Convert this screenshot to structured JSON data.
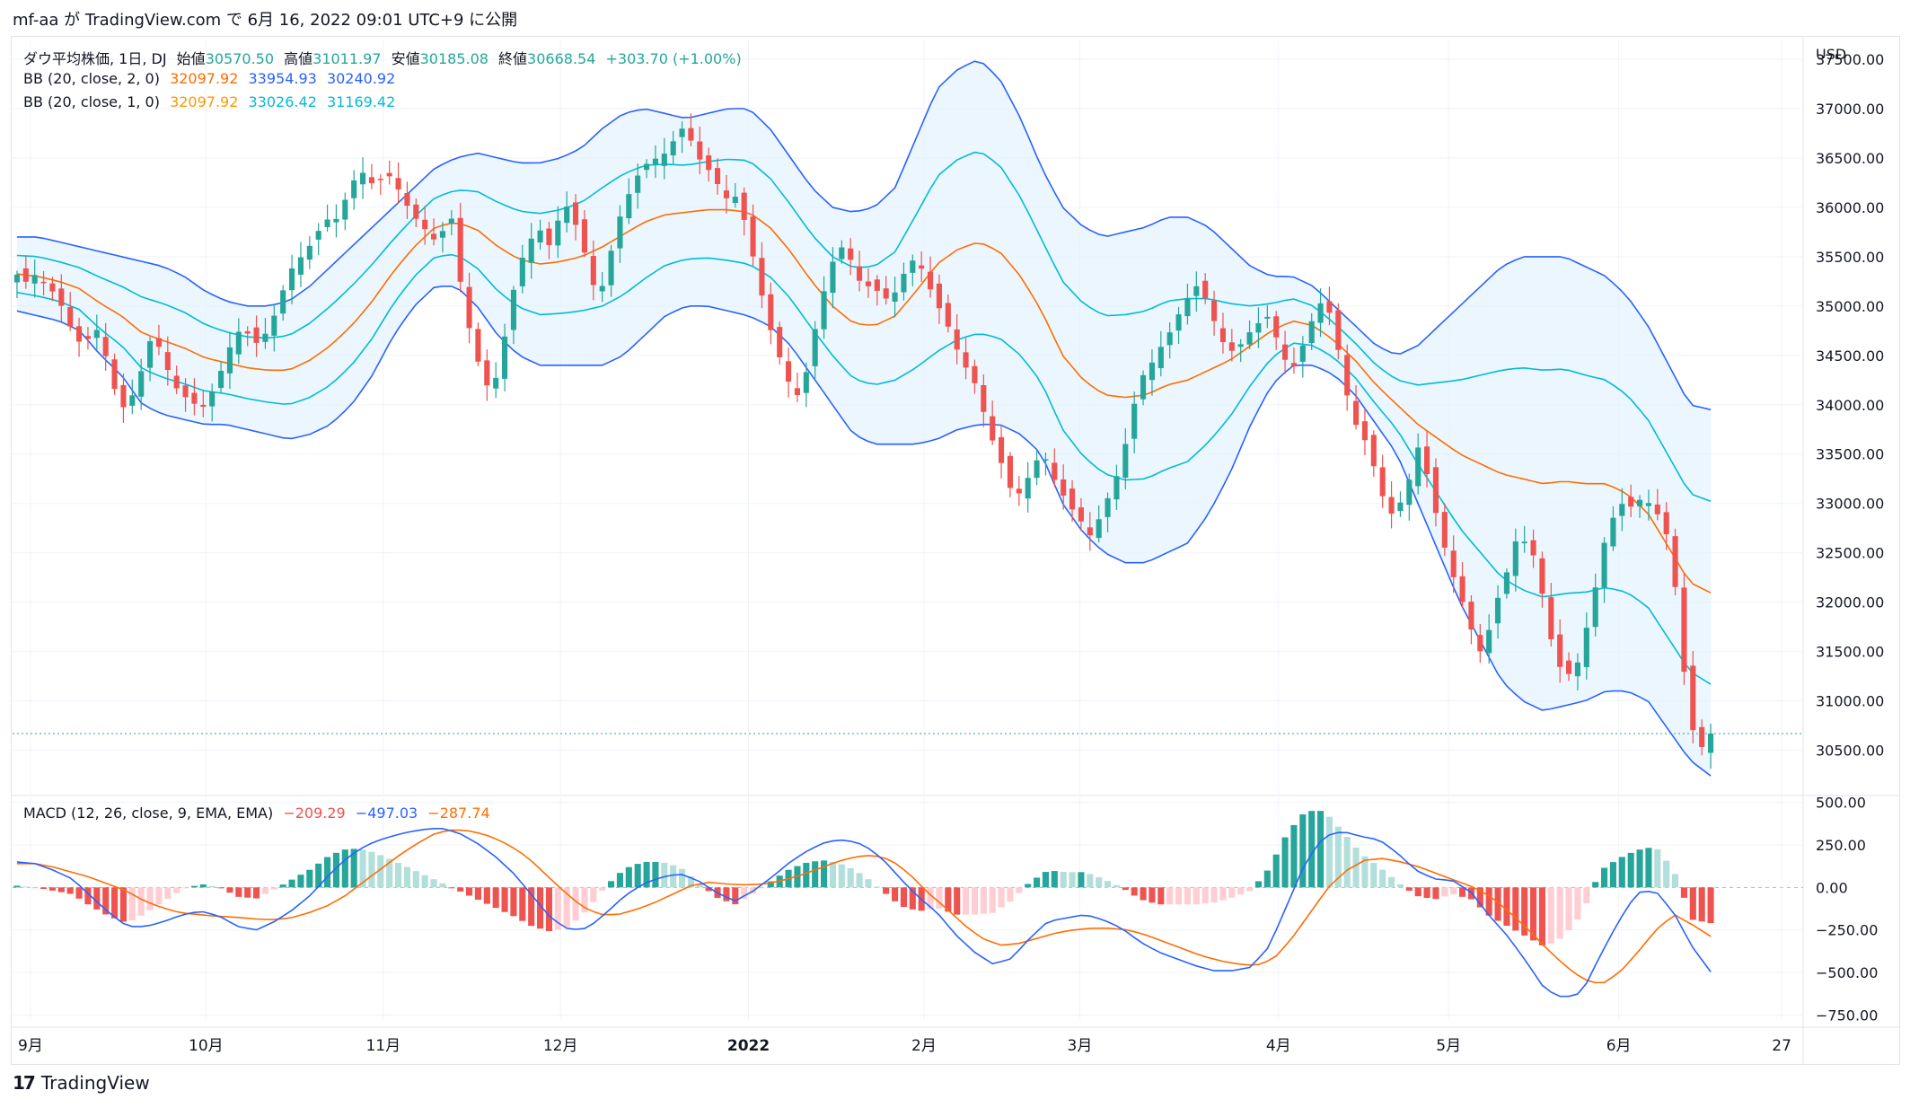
{
  "header": {
    "text": "mf-aa が TradingView.com で 6月 16, 2022 09:01 UTC+9 に公開"
  },
  "legend": {
    "main": {
      "symbol": "ダウ平均株価, 1日, DJ",
      "open_label": "始値",
      "open": "30570.50",
      "high_label": "高値",
      "high": "31011.97",
      "low_label": "安値",
      "low": "30185.08",
      "close_label": "終値",
      "close": "30668.54",
      "change": "+303.70 (+1.00%)"
    },
    "bb2": {
      "label": "BB (20, close, 2, 0)",
      "basis": "32097.92",
      "upper": "33954.93",
      "lower": "30240.92"
    },
    "bb1": {
      "label": "BB (20, close, 1, 0)",
      "basis": "32097.92",
      "upper": "33026.42",
      "lower": "31169.42"
    },
    "macd": {
      "label": "MACD (12, 26, close, 9, EMA, EMA)",
      "hist": "−209.29",
      "macd": "−497.03",
      "signal": "−287.74"
    }
  },
  "footer": {
    "logo": "17",
    "brand": "TradingView"
  },
  "colors": {
    "up": "#26a69a",
    "down": "#ef5350",
    "up_light": "#b2dfdb",
    "down_light": "#ffcdd2",
    "bb2_band": "#2962ff",
    "bb1_band": "#00bcd4",
    "basis": "#ff6d00",
    "fill": "#e3f2fd",
    "macd_line": "#2962ff",
    "signal_line": "#ff6d00",
    "grid": "#f0f3fa",
    "text": "#131722"
  },
  "chart_data": [
    {
      "type": "candlestick",
      "title": "ダウ平均株価, 1日, DJ",
      "currency": "USD",
      "y_ticks": [
        "37500.00",
        "37000.00",
        "36500.00",
        "36000.00",
        "35500.00",
        "35000.00",
        "34500.00",
        "34000.00",
        "33500.00",
        "33000.00",
        "32500.00",
        "32000.00",
        "31500.00",
        "31000.00",
        "30500.00"
      ],
      "ylim": [
        30050,
        37700
      ],
      "x_ticks": [
        "9月",
        "10月",
        "11月",
        "12月",
        "2022",
        "2月",
        "3月",
        "4月",
        "5月",
        "6月",
        "27"
      ],
      "last_price": 30668.54,
      "close_path": [
        35300,
        35200,
        35350,
        35250,
        35100,
        34900,
        34700,
        34550,
        34800,
        34600,
        34200,
        33950,
        34100,
        34400,
        34700,
        34500,
        34300,
        34100,
        34000,
        33950,
        34100,
        34300,
        34600,
        34800,
        34700,
        34550,
        34800,
        35000,
        35300,
        35500,
        35600,
        35700,
        35850,
        35900,
        36100,
        36300,
        36400,
        36200,
        36300,
        36250,
        36100,
        35900,
        35800,
        35700,
        35750,
        35850,
        35100,
        34700,
        34300,
        34100,
        34500,
        35000,
        35400,
        35700,
        35800,
        35600,
        35900,
        36050,
        35700,
        35400,
        35100,
        35400,
        35800,
        36100,
        36300,
        36400,
        36500,
        36600,
        36700,
        36800,
        36600,
        36400,
        36300,
        36100,
        36200,
        35900,
        35500,
        35100,
        34700,
        34400,
        34200,
        34100,
        34500,
        35000,
        35400,
        35600,
        35500,
        35300,
        35200,
        35100,
        35050,
        35200,
        35400,
        35500,
        35300,
        35000,
        34800,
        34600,
        34400,
        34200,
        33900,
        33600,
        33300,
        33000,
        33200,
        33400,
        33500,
        33300,
        33100,
        32900,
        32800,
        32700,
        32900,
        33100,
        33400,
        33800,
        34200,
        34400,
        34600,
        34700,
        34900,
        35100,
        35200,
        35000,
        34800,
        34600,
        34500,
        34700,
        34800,
        34900,
        34700,
        34500,
        34400,
        34600,
        34900,
        35100,
        34800,
        34300,
        33900,
        33700,
        33400,
        33100,
        32900,
        33000,
        33300,
        33700,
        33100,
        32700,
        32400,
        32100,
        31800,
        31500,
        31700,
        32000,
        32300,
        32700,
        32600,
        32400,
        31900,
        31400,
        31200,
        31300,
        31700,
        32100,
        32600,
        32900,
        33000,
        32900,
        33100,
        33000,
        32800,
        32500,
        31500,
        30700,
        30500,
        30668
      ],
      "bb2_upper_path": [
        35700,
        35700,
        35650,
        35600,
        35550,
        35500,
        35450,
        35400,
        35300,
        35150,
        35050,
        35000,
        35000,
        35050,
        35200,
        35400,
        35600,
        35800,
        36000,
        36200,
        36400,
        36500,
        36550,
        36500,
        36450,
        36450,
        36500,
        36600,
        36800,
        36950,
        37000,
        36950,
        36900,
        36950,
        37000,
        37000,
        36800,
        36500,
        36200,
        36000,
        35950,
        36000,
        36200,
        36700,
        37200,
        37400,
        37500,
        37300,
        36900,
        36400,
        36000,
        35800,
        35700,
        35750,
        35800,
        35900,
        35900,
        35800,
        35600,
        35400,
        35300,
        35300,
        35200,
        35000,
        34800,
        34600,
        34500,
        34600,
        34800,
        35000,
        35200,
        35400,
        35500,
        35500,
        35500,
        35400,
        35300,
        35100,
        34800,
        34400,
        34000,
        33950
      ],
      "bb2_lower_path": [
        34950,
        34900,
        34850,
        34750,
        34500,
        34300,
        34000,
        33900,
        33850,
        33800,
        33800,
        33750,
        33700,
        33650,
        33700,
        33800,
        34000,
        34300,
        34700,
        35000,
        35200,
        35200,
        35000,
        34700,
        34500,
        34400,
        34400,
        34400,
        34400,
        34500,
        34700,
        34900,
        35000,
        35000,
        34950,
        34900,
        34800,
        34600,
        34300,
        34000,
        33700,
        33600,
        33600,
        33600,
        33650,
        33750,
        33800,
        33800,
        33700,
        33500,
        33000,
        32700,
        32500,
        32400,
        32400,
        32500,
        32600,
        32900,
        33300,
        33800,
        34200,
        34400,
        34400,
        34300,
        34100,
        33800,
        33500,
        33000,
        32500,
        32000,
        31600,
        31200,
        31000,
        30900,
        30950,
        31000,
        31100,
        31100,
        31000,
        30700,
        30400,
        30240
      ]
    },
    {
      "type": "macd",
      "title": "MACD (12, 26, close, 9, EMA, EMA)",
      "y_ticks": [
        "500.00",
        "250.00",
        "0.00",
        "−250.00",
        "−500.00",
        "−750.00"
      ],
      "ylim": [
        -780,
        530
      ],
      "macd_path": [
        150,
        140,
        100,
        50,
        -50,
        -150,
        -230,
        -230,
        -200,
        -160,
        -140,
        -170,
        -230,
        -250,
        -200,
        -130,
        -40,
        80,
        180,
        250,
        290,
        320,
        340,
        350,
        320,
        260,
        180,
        80,
        -50,
        -180,
        -250,
        -240,
        -150,
        -50,
        20,
        60,
        80,
        40,
        -30,
        -80,
        -20,
        60,
        150,
        220,
        270,
        280,
        250,
        170,
        50,
        -60,
        -150,
        -280,
        -380,
        -450,
        -420,
        -300,
        -200,
        -180,
        -160,
        -190,
        -240,
        -320,
        -380,
        -420,
        -460,
        -490,
        -490,
        -470,
        -350,
        -100,
        150,
        300,
        330,
        300,
        280,
        200,
        100,
        50,
        40,
        -30,
        -170,
        -290,
        -440,
        -600,
        -650,
        -620,
        -400,
        -200,
        -30,
        -20,
        -150,
        -350,
        -497
      ],
      "signal_path": [
        140,
        140,
        120,
        90,
        60,
        20,
        -20,
        -80,
        -120,
        -150,
        -160,
        -170,
        -175,
        -185,
        -190,
        -180,
        -150,
        -110,
        -50,
        30,
        110,
        190,
        260,
        320,
        340,
        330,
        300,
        250,
        180,
        80,
        -20,
        -110,
        -160,
        -160,
        -130,
        -90,
        -40,
        10,
        30,
        20,
        15,
        20,
        40,
        70,
        110,
        150,
        180,
        190,
        160,
        80,
        -30,
        -120,
        -220,
        -300,
        -340,
        -330,
        -300,
        -270,
        -250,
        -240,
        -240,
        -250,
        -280,
        -320,
        -360,
        -400,
        -430,
        -450,
        -460,
        -420,
        -300,
        -150,
        0,
        100,
        160,
        170,
        150,
        120,
        80,
        40,
        0,
        -60,
        -150,
        -250,
        -360,
        -460,
        -540,
        -570,
        -500,
        -380,
        -250,
        -160,
        -220,
        -288
      ],
      "hist_path": [
        10,
        0,
        -20,
        -40,
        -110,
        -170,
        -210,
        -150,
        -80,
        -10,
        20,
        0,
        -55,
        -65,
        -10,
        50,
        110,
        190,
        230,
        220,
        180,
        130,
        80,
        30,
        -20,
        -70,
        -120,
        -170,
        -230,
        -260,
        -230,
        -130,
        10,
        110,
        150,
        150,
        120,
        30,
        -60,
        -100,
        -35,
        40,
        110,
        150,
        160,
        130,
        70,
        -20,
        -110,
        -140,
        -120,
        -160,
        -160,
        -150,
        -80,
        30,
        100,
        90,
        90,
        50,
        0,
        -70,
        -100,
        -100,
        -100,
        -90,
        -60,
        -20,
        110,
        320,
        450,
        450,
        330,
        200,
        120,
        30,
        -50,
        -70,
        -40,
        -70,
        -170,
        -230,
        -290,
        -350,
        -290,
        -160,
        100,
        170,
        220,
        240,
        100,
        -190,
        -210
      ]
    }
  ]
}
